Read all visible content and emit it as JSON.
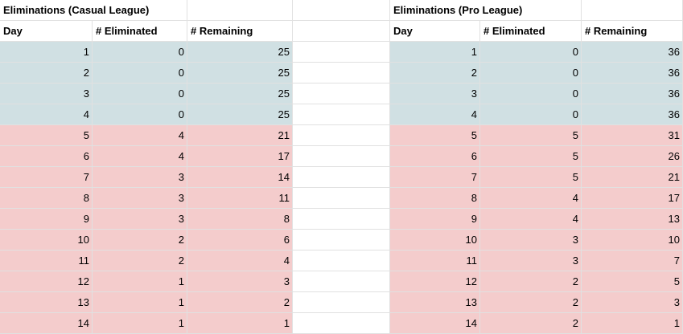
{
  "sheet": {
    "colors": {
      "safe_fill": "#d0e0e3",
      "eliminated_fill": "#f4cccc",
      "gridline": "#e1e1e1",
      "text": "#000000"
    },
    "safe_row_count": 4
  },
  "tables": [
    {
      "title": "Eliminations (Casual League)",
      "columns": [
        "Day",
        "# Eliminated",
        "# Remaining"
      ],
      "rows": [
        [
          1,
          0,
          25
        ],
        [
          2,
          0,
          25
        ],
        [
          3,
          0,
          25
        ],
        [
          4,
          0,
          25
        ],
        [
          5,
          4,
          21
        ],
        [
          6,
          4,
          17
        ],
        [
          7,
          3,
          14
        ],
        [
          8,
          3,
          11
        ],
        [
          9,
          3,
          8
        ],
        [
          10,
          2,
          6
        ],
        [
          11,
          2,
          4
        ],
        [
          12,
          1,
          3
        ],
        [
          13,
          1,
          2
        ],
        [
          14,
          1,
          1
        ]
      ]
    },
    {
      "title": "Eliminations (Pro League)",
      "columns": [
        "Day",
        "# Eliminated",
        "# Remaining"
      ],
      "rows": [
        [
          1,
          0,
          36
        ],
        [
          2,
          0,
          36
        ],
        [
          3,
          0,
          36
        ],
        [
          4,
          0,
          36
        ],
        [
          5,
          5,
          31
        ],
        [
          6,
          5,
          26
        ],
        [
          7,
          5,
          21
        ],
        [
          8,
          4,
          17
        ],
        [
          9,
          4,
          13
        ],
        [
          10,
          3,
          10
        ],
        [
          11,
          3,
          7
        ],
        [
          12,
          2,
          5
        ],
        [
          13,
          2,
          3
        ],
        [
          14,
          2,
          1
        ]
      ]
    }
  ]
}
